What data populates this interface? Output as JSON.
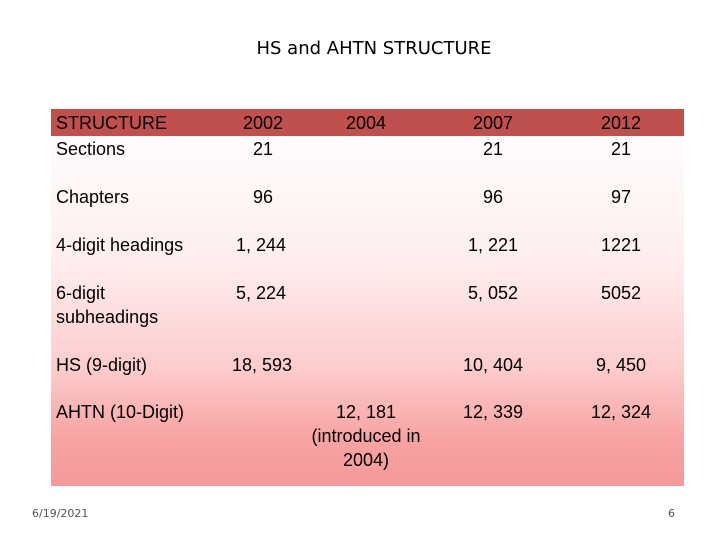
{
  "title": "HS and AHTN STRUCTURE",
  "table": {
    "header": {
      "label": "STRUCTURE",
      "years": [
        "2002",
        "2004",
        "2007",
        "2012"
      ]
    },
    "rows": [
      {
        "label": "Sections",
        "v2002": "21",
        "v2004": "",
        "v2007": "21",
        "v2012": "21"
      },
      {
        "label": "Chapters",
        "v2002": "96",
        "v2004": "",
        "v2007": "96",
        "v2012": "97"
      },
      {
        "label": "4-digit headings",
        "v2002": "1, 244",
        "v2004": "",
        "v2007": "1, 221",
        "v2012": "1221"
      },
      {
        "label": "6-digit subheadings",
        "v2002": "5, 224",
        "v2004": "",
        "v2007": "5, 052",
        "v2012": "5052"
      },
      {
        "label": "HS (9-digit)",
        "v2002": "18, 593",
        "v2004": "",
        "v2007": "10, 404",
        "v2012": "9, 450"
      },
      {
        "label": "AHTN (10-Digit)",
        "v2002": "",
        "v2004": "12, 181 (introduced in 2004)",
        "v2007": "12, 339",
        "v2012": "12, 324"
      }
    ]
  },
  "footer": {
    "date": "6/19/2021",
    "page": "6"
  },
  "colors": {
    "header_bar": "#c0504d",
    "gradient_top": "#ffffff",
    "gradient_bottom": "#f49a9a"
  }
}
